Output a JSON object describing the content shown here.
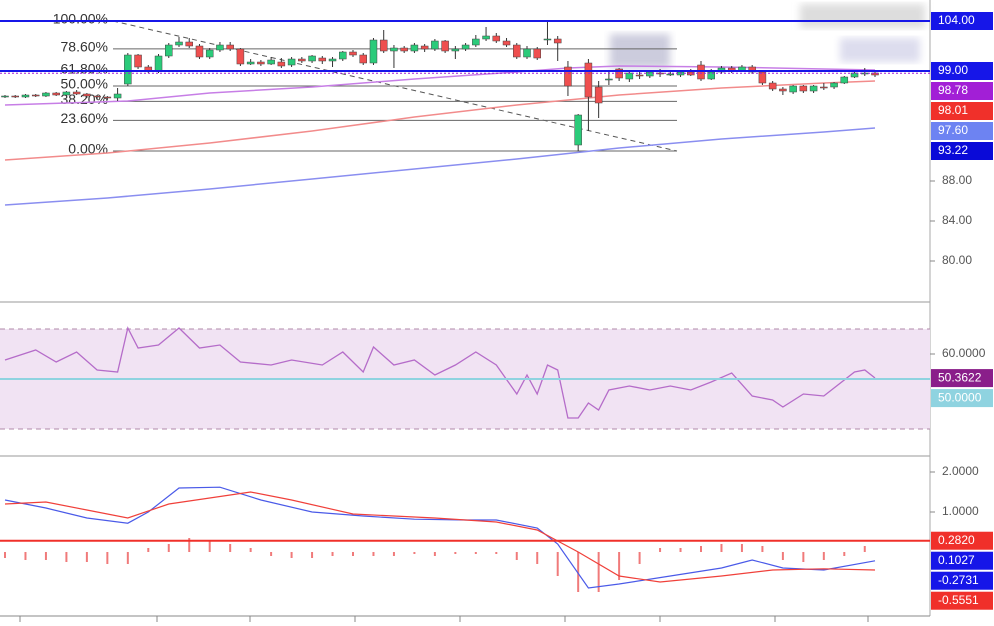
{
  "chart_data": [
    {
      "type": "candlestick",
      "open": [
        96.4,
        96.5,
        96.4,
        96.6,
        96.5,
        96.8,
        96.6,
        96.9,
        96.7,
        96.5,
        96.4,
        96.3,
        97.7,
        100.6,
        99.4,
        99.0,
        100.5,
        101.6,
        101.9,
        101.5,
        100.4,
        101.1,
        101.6,
        101.2,
        99.7,
        99.9,
        99.7,
        99.9,
        99.6,
        100.2,
        100.0,
        100.3,
        100.0,
        100.2,
        100.9,
        100.6,
        99.8,
        102.1,
        101.0,
        101.3,
        101.0,
        101.5,
        101.2,
        102.0,
        101.0,
        101.2,
        101.6,
        102.2,
        102.5,
        102.0,
        101.6,
        100.4,
        101.2,
        102.1,
        102.2,
        99.4,
        91.6,
        99.8,
        97.4,
        98.1,
        99.2,
        98.2,
        98.6,
        98.5,
        98.8,
        98.7,
        98.6,
        98.9,
        99.6,
        98.2,
        98.9,
        99.3,
        99.0,
        99.4,
        98.9,
        97.8,
        97.2,
        96.9,
        97.5,
        97.0,
        97.4,
        97.4,
        97.8,
        98.4,
        98.8,
        98.8
      ],
      "high": [
        96.6,
        96.6,
        96.7,
        96.7,
        96.9,
        96.9,
        97.0,
        97.1,
        96.8,
        96.6,
        96.5,
        97.3,
        100.8,
        100.7,
        99.6,
        100.7,
        101.8,
        102.4,
        102.3,
        101.7,
        101.3,
        101.9,
        101.9,
        101.3,
        100.2,
        100.1,
        100.4,
        100.3,
        100.4,
        100.4,
        100.6,
        100.5,
        100.4,
        101.0,
        101.1,
        100.8,
        102.3,
        103.1,
        101.6,
        101.5,
        101.8,
        101.7,
        102.2,
        102.1,
        101.5,
        101.8,
        102.6,
        103.4,
        102.8,
        102.3,
        101.8,
        101.5,
        101.4,
        104.0,
        102.5,
        100.0,
        94.7,
        100.2,
        98.0,
        99.0,
        99.3,
        99.1,
        99.0,
        99.1,
        99.2,
        99.0,
        99.1,
        99.2,
        100.0,
        99.2,
        99.5,
        99.5,
        99.6,
        99.6,
        99.1,
        98.0,
        97.4,
        97.6,
        97.6,
        97.6,
        97.8,
        97.9,
        98.5,
        99.0,
        99.3,
        98.9
      ],
      "low": [
        96.3,
        96.3,
        96.3,
        96.4,
        96.4,
        96.5,
        96.5,
        96.6,
        96.3,
        96.2,
        96.1,
        96.0,
        97.5,
        99.2,
        98.8,
        98.8,
        100.3,
        101.4,
        101.3,
        100.2,
        100.2,
        100.9,
        101.0,
        99.5,
        99.6,
        99.5,
        99.6,
        99.3,
        99.4,
        99.8,
        99.8,
        99.7,
        99.4,
        100.0,
        100.4,
        99.6,
        99.6,
        100.8,
        99.3,
        100.8,
        100.8,
        100.9,
        101.0,
        100.8,
        100.2,
        101.0,
        101.4,
        102.0,
        101.8,
        101.4,
        100.2,
        100.2,
        100.1,
        101.6,
        100.0,
        96.5,
        91.0,
        93.0,
        94.3,
        97.6,
        98.0,
        97.9,
        98.2,
        98.3,
        98.4,
        98.5,
        98.4,
        98.5,
        98.0,
        98.1,
        98.7,
        98.8,
        98.9,
        98.7,
        97.6,
        97.0,
        96.6,
        96.7,
        96.8,
        96.8,
        97.1,
        97.2,
        97.7,
        98.3,
        98.5,
        98.4
      ],
      "close": [
        96.5,
        96.4,
        96.6,
        96.5,
        96.8,
        96.6,
        96.9,
        96.7,
        96.5,
        96.4,
        96.3,
        96.7,
        100.6,
        99.4,
        99.0,
        100.5,
        101.6,
        101.9,
        101.5,
        100.4,
        101.1,
        101.6,
        101.2,
        99.7,
        99.9,
        99.7,
        100.1,
        99.5,
        100.2,
        100.0,
        100.5,
        100.0,
        100.2,
        100.9,
        100.6,
        99.8,
        102.1,
        101.0,
        101.3,
        101.0,
        101.6,
        101.2,
        102.0,
        101.0,
        101.2,
        101.6,
        102.2,
        102.5,
        102.0,
        101.6,
        100.4,
        101.2,
        100.3,
        102.2,
        101.8,
        97.5,
        94.6,
        96.4,
        95.8,
        98.2,
        98.3,
        98.8,
        98.5,
        98.9,
        98.7,
        98.7,
        98.9,
        98.6,
        98.2,
        98.9,
        99.3,
        99.0,
        99.4,
        98.9,
        97.8,
        97.2,
        97.0,
        97.5,
        97.0,
        97.5,
        97.3,
        97.8,
        98.4,
        98.8,
        98.8,
        98.6
      ],
      "up_color": "#2bcb7a",
      "down_color": "#ef4f4f",
      "ylim": [
        76.1,
        106.1
      ],
      "yticks": [
        {
          "value": 80,
          "label": "80.00"
        },
        {
          "value": 84,
          "label": "84.00"
        },
        {
          "value": 88,
          "label": "88.00"
        }
      ],
      "moving_averages": [
        {
          "color": "#c77ee6",
          "x": [
            0,
            12,
            20,
            30,
            40,
            50,
            55,
            60,
            70,
            80,
            85
          ],
          "values": [
            95.6,
            96.0,
            96.8,
            97.4,
            98.2,
            98.9,
            99.3,
            99.5,
            99.4,
            99.2,
            99.1
          ]
        },
        {
          "color": "#f28b8b",
          "x": [
            0,
            10,
            20,
            30,
            40,
            50,
            60,
            70,
            80,
            85
          ],
          "values": [
            90.1,
            90.8,
            91.8,
            93.0,
            94.4,
            95.6,
            96.6,
            97.3,
            97.8,
            98.0
          ]
        },
        {
          "color": "#8a8ef0",
          "x": [
            0,
            10,
            20,
            30,
            40,
            50,
            60,
            70,
            80,
            85
          ],
          "values": [
            85.6,
            86.3,
            87.2,
            88.2,
            89.2,
            90.2,
            91.3,
            92.2,
            92.9,
            93.3
          ]
        }
      ],
      "fibonacci": {
        "low": 91,
        "high": 104,
        "levels": [
          {
            "value": 100,
            "label": "100.00%"
          },
          {
            "value": 78.6,
            "label": "78.60%"
          },
          {
            "value": 61.8,
            "label": "61.80%"
          },
          {
            "value": 50,
            "label": "50.00%"
          },
          {
            "value": 38.2,
            "label": "38.20%"
          },
          {
            "value": 23.6,
            "label": "23.60%"
          },
          {
            "value": 0,
            "label": "0.00%"
          }
        ]
      },
      "price_labels": [
        {
          "value": 104,
          "label": "104.00",
          "color": "#1616e8",
          "line": "solid"
        },
        {
          "value": 99,
          "label": "99.00",
          "color": "#1616e8",
          "line": "solid"
        },
        {
          "value": 98.78,
          "label": "98.78",
          "color": "#a21fd6",
          "line": "dotted"
        },
        {
          "value": 98.01,
          "label": "98.01",
          "color": "#f0302a"
        },
        {
          "value": 97.6,
          "label": "97.60",
          "color": "#6d83f2"
        },
        {
          "value": 93.22,
          "label": "93.22",
          "color": "#0a0ad8"
        }
      ]
    },
    {
      "type": "line",
      "series": [
        {
          "color": "#b56cc9",
          "x": [
            0,
            3,
            5,
            7,
            9,
            11,
            12,
            13,
            15,
            17,
            19,
            21,
            23,
            26,
            28,
            31,
            33,
            35,
            36,
            38,
            40,
            42,
            44,
            46,
            48,
            50,
            51,
            52,
            53,
            54,
            55,
            56,
            57,
            58,
            59,
            61,
            63,
            65,
            67,
            69,
            71,
            73,
            75,
            76,
            78,
            80,
            83,
            84,
            85
          ],
          "values": [
            57.6,
            61.6,
            56.8,
            60.8,
            53.6,
            52.8,
            70.4,
            62.4,
            63.6,
            70.4,
            62.4,
            63.6,
            56.8,
            55.6,
            57.6,
            55.6,
            60.8,
            52.8,
            62.8,
            55.6,
            57.6,
            51.6,
            55.6,
            60.8,
            55.6,
            44,
            51.6,
            44,
            55.6,
            53.6,
            34.4,
            34.4,
            40.4,
            37.6,
            45.6,
            47.2,
            45.6,
            47.2,
            45.6,
            48.8,
            52.4,
            43.2,
            41.6,
            38.8,
            44,
            43.2,
            52.8,
            53.6,
            50.4
          ]
        }
      ],
      "ylim": [
        21.6,
        79.6
      ],
      "yticks": [
        {
          "value": 60,
          "label": "60.0000"
        }
      ],
      "bands": [
        30,
        70
      ],
      "band_color": "#f1e3f3",
      "price_labels": [
        {
          "value": 50.3622,
          "label": "50.3622",
          "color": "#8a1e8a"
        },
        {
          "value": 50,
          "label": "50.0000",
          "color": "#8fd3e0",
          "line": "solid"
        }
      ]
    },
    {
      "type": "macd",
      "series": [
        {
          "color": "#4a5ae8",
          "x": [
            0,
            4,
            8,
            12,
            14,
            17,
            21,
            25,
            30,
            35,
            40,
            45,
            48,
            52,
            54,
            57,
            60,
            65,
            70,
            73,
            76,
            80,
            85
          ],
          "values": [
            1.3,
            1.1,
            0.85,
            0.72,
            1.0,
            1.6,
            1.62,
            1.3,
            1.0,
            0.9,
            0.82,
            0.8,
            0.8,
            0.6,
            0.2,
            -0.9,
            -0.8,
            -0.6,
            -0.4,
            -0.2,
            -0.4,
            -0.45,
            -0.22
          ]
        },
        {
          "color": "#f0403a",
          "x": [
            0,
            4,
            8,
            12,
            16,
            24,
            28,
            34,
            42,
            48,
            52,
            56,
            60,
            64,
            70,
            75,
            80,
            85
          ],
          "values": [
            1.2,
            1.25,
            1.05,
            0.85,
            1.2,
            1.5,
            1.3,
            0.95,
            0.85,
            0.75,
            0.55,
            0.0,
            -0.6,
            -0.75,
            -0.6,
            -0.45,
            -0.42,
            -0.45
          ]
        }
      ],
      "histogram": {
        "color": "#f07a7a",
        "x": [
          0,
          2,
          4,
          6,
          8,
          10,
          12,
          14,
          16,
          18,
          20,
          22,
          24,
          26,
          28,
          30,
          32,
          34,
          36,
          38,
          40,
          42,
          44,
          46,
          48,
          50,
          52,
          54,
          56,
          58,
          60,
          62,
          64,
          66,
          68,
          70,
          72,
          74,
          76,
          78,
          80,
          82,
          84
        ],
        "values": [
          -0.15,
          -0.2,
          -0.2,
          -0.25,
          -0.25,
          -0.3,
          -0.3,
          0.1,
          0.2,
          0.35,
          0.3,
          0.2,
          0.1,
          -0.1,
          -0.15,
          -0.15,
          -0.1,
          -0.1,
          -0.1,
          -0.1,
          -0.05,
          -0.1,
          -0.05,
          -0.05,
          -0.05,
          -0.2,
          -0.3,
          -0.6,
          -1.0,
          -1.0,
          -0.7,
          -0.3,
          0.1,
          0.1,
          0.15,
          0.2,
          0.2,
          0.15,
          -0.2,
          -0.25,
          -0.2,
          -0.1,
          0.15
        ]
      },
      "ylim": [
        -1.575,
        2.3
      ],
      "yticks": [
        {
          "value": 2,
          "label": "2.0000"
        },
        {
          "value": 1,
          "label": "1.0000"
        }
      ],
      "price_labels": [
        {
          "value": 0.282,
          "label": "0.2820",
          "color": "#f0302a",
          "line": "solid"
        },
        {
          "value": 0.1027,
          "label": "0.1027",
          "color": "#1616e8"
        },
        {
          "value": -0.2731,
          "label": "-0.2731",
          "color": "#1616e8"
        },
        {
          "value": -0.5551,
          "label": "-0.5551",
          "color": "#f0302a"
        }
      ]
    }
  ]
}
